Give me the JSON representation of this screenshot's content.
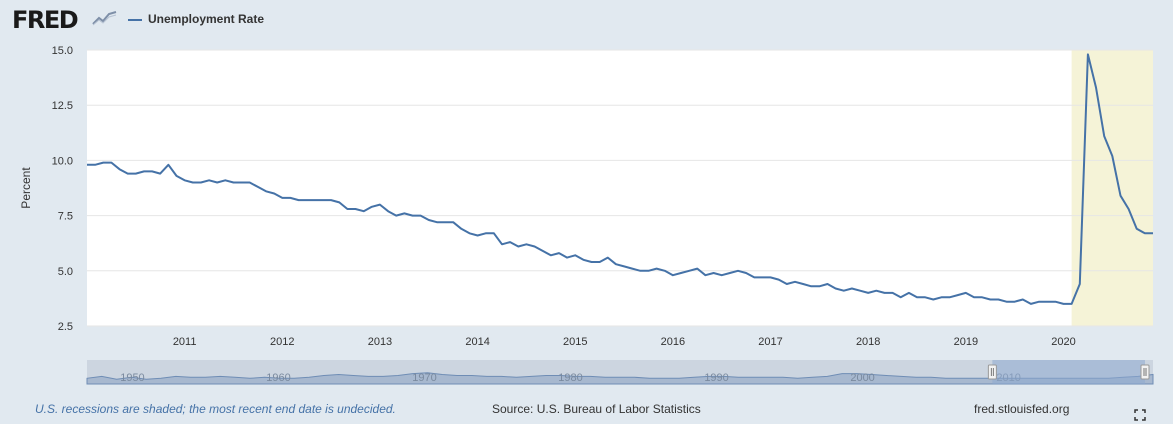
{
  "header": {
    "logo_text": "FRED",
    "legend_label": "Unemployment Rate",
    "series_color": "#4572a7"
  },
  "footer": {
    "recession_note": "U.S. recessions are shaded; the most recent end date is undecided.",
    "source": "Source: U.S. Bureau of Labor Statistics",
    "site": "fred.stlouisfed.org"
  },
  "colors": {
    "background": "#e1e9f0",
    "plot_background": "#ffffff",
    "recession_shade": "#f5f3d7",
    "navigator_fill": "#c3d0e0",
    "navigator_selection": "#8eaad0"
  },
  "chart_data": {
    "type": "line",
    "ylabel": "Percent",
    "xlabel": "",
    "x_start": "2010-01",
    "x_end": "2020-12",
    "xticks": [
      "2011",
      "2012",
      "2013",
      "2014",
      "2015",
      "2016",
      "2017",
      "2018",
      "2019",
      "2020"
    ],
    "yticks": [
      "2.5",
      "5.0",
      "7.5",
      "10.0",
      "12.5",
      "15.0"
    ],
    "ylim": [
      2.5,
      15.0
    ],
    "grid": true,
    "recession_shading": [
      {
        "start": "2020-02",
        "end": "2020-12"
      }
    ],
    "series": [
      {
        "name": "Unemployment Rate",
        "frequency": "monthly",
        "values": [
          9.8,
          9.8,
          9.9,
          9.9,
          9.6,
          9.4,
          9.4,
          9.5,
          9.5,
          9.4,
          9.8,
          9.3,
          9.1,
          9.0,
          9.0,
          9.1,
          9.0,
          9.1,
          9.0,
          9.0,
          9.0,
          8.8,
          8.6,
          8.5,
          8.3,
          8.3,
          8.2,
          8.2,
          8.2,
          8.2,
          8.2,
          8.1,
          7.8,
          7.8,
          7.7,
          7.9,
          8.0,
          7.7,
          7.5,
          7.6,
          7.5,
          7.5,
          7.3,
          7.2,
          7.2,
          7.2,
          6.9,
          6.7,
          6.6,
          6.7,
          6.7,
          6.2,
          6.3,
          6.1,
          6.2,
          6.1,
          5.9,
          5.7,
          5.8,
          5.6,
          5.7,
          5.5,
          5.4,
          5.4,
          5.6,
          5.3,
          5.2,
          5.1,
          5.0,
          5.0,
          5.1,
          5.0,
          4.8,
          4.9,
          5.0,
          5.1,
          4.8,
          4.9,
          4.8,
          4.9,
          5.0,
          4.9,
          4.7,
          4.7,
          4.7,
          4.6,
          4.4,
          4.5,
          4.4,
          4.3,
          4.3,
          4.4,
          4.2,
          4.1,
          4.2,
          4.1,
          4.0,
          4.1,
          4.0,
          4.0,
          3.8,
          4.0,
          3.8,
          3.8,
          3.7,
          3.8,
          3.8,
          3.9,
          4.0,
          3.8,
          3.8,
          3.7,
          3.7,
          3.6,
          3.6,
          3.7,
          3.5,
          3.6,
          3.6,
          3.6,
          3.5,
          3.5,
          4.4,
          14.8,
          13.3,
          11.1,
          10.2,
          8.4,
          7.8,
          6.9,
          6.7,
          6.7
        ]
      }
    ],
    "navigator": {
      "xticks": [
        "1950",
        "1960",
        "1970",
        "1980",
        "1990",
        "2000",
        "2010"
      ],
      "selection_start": "2010",
      "selection_end": "2020"
    }
  }
}
